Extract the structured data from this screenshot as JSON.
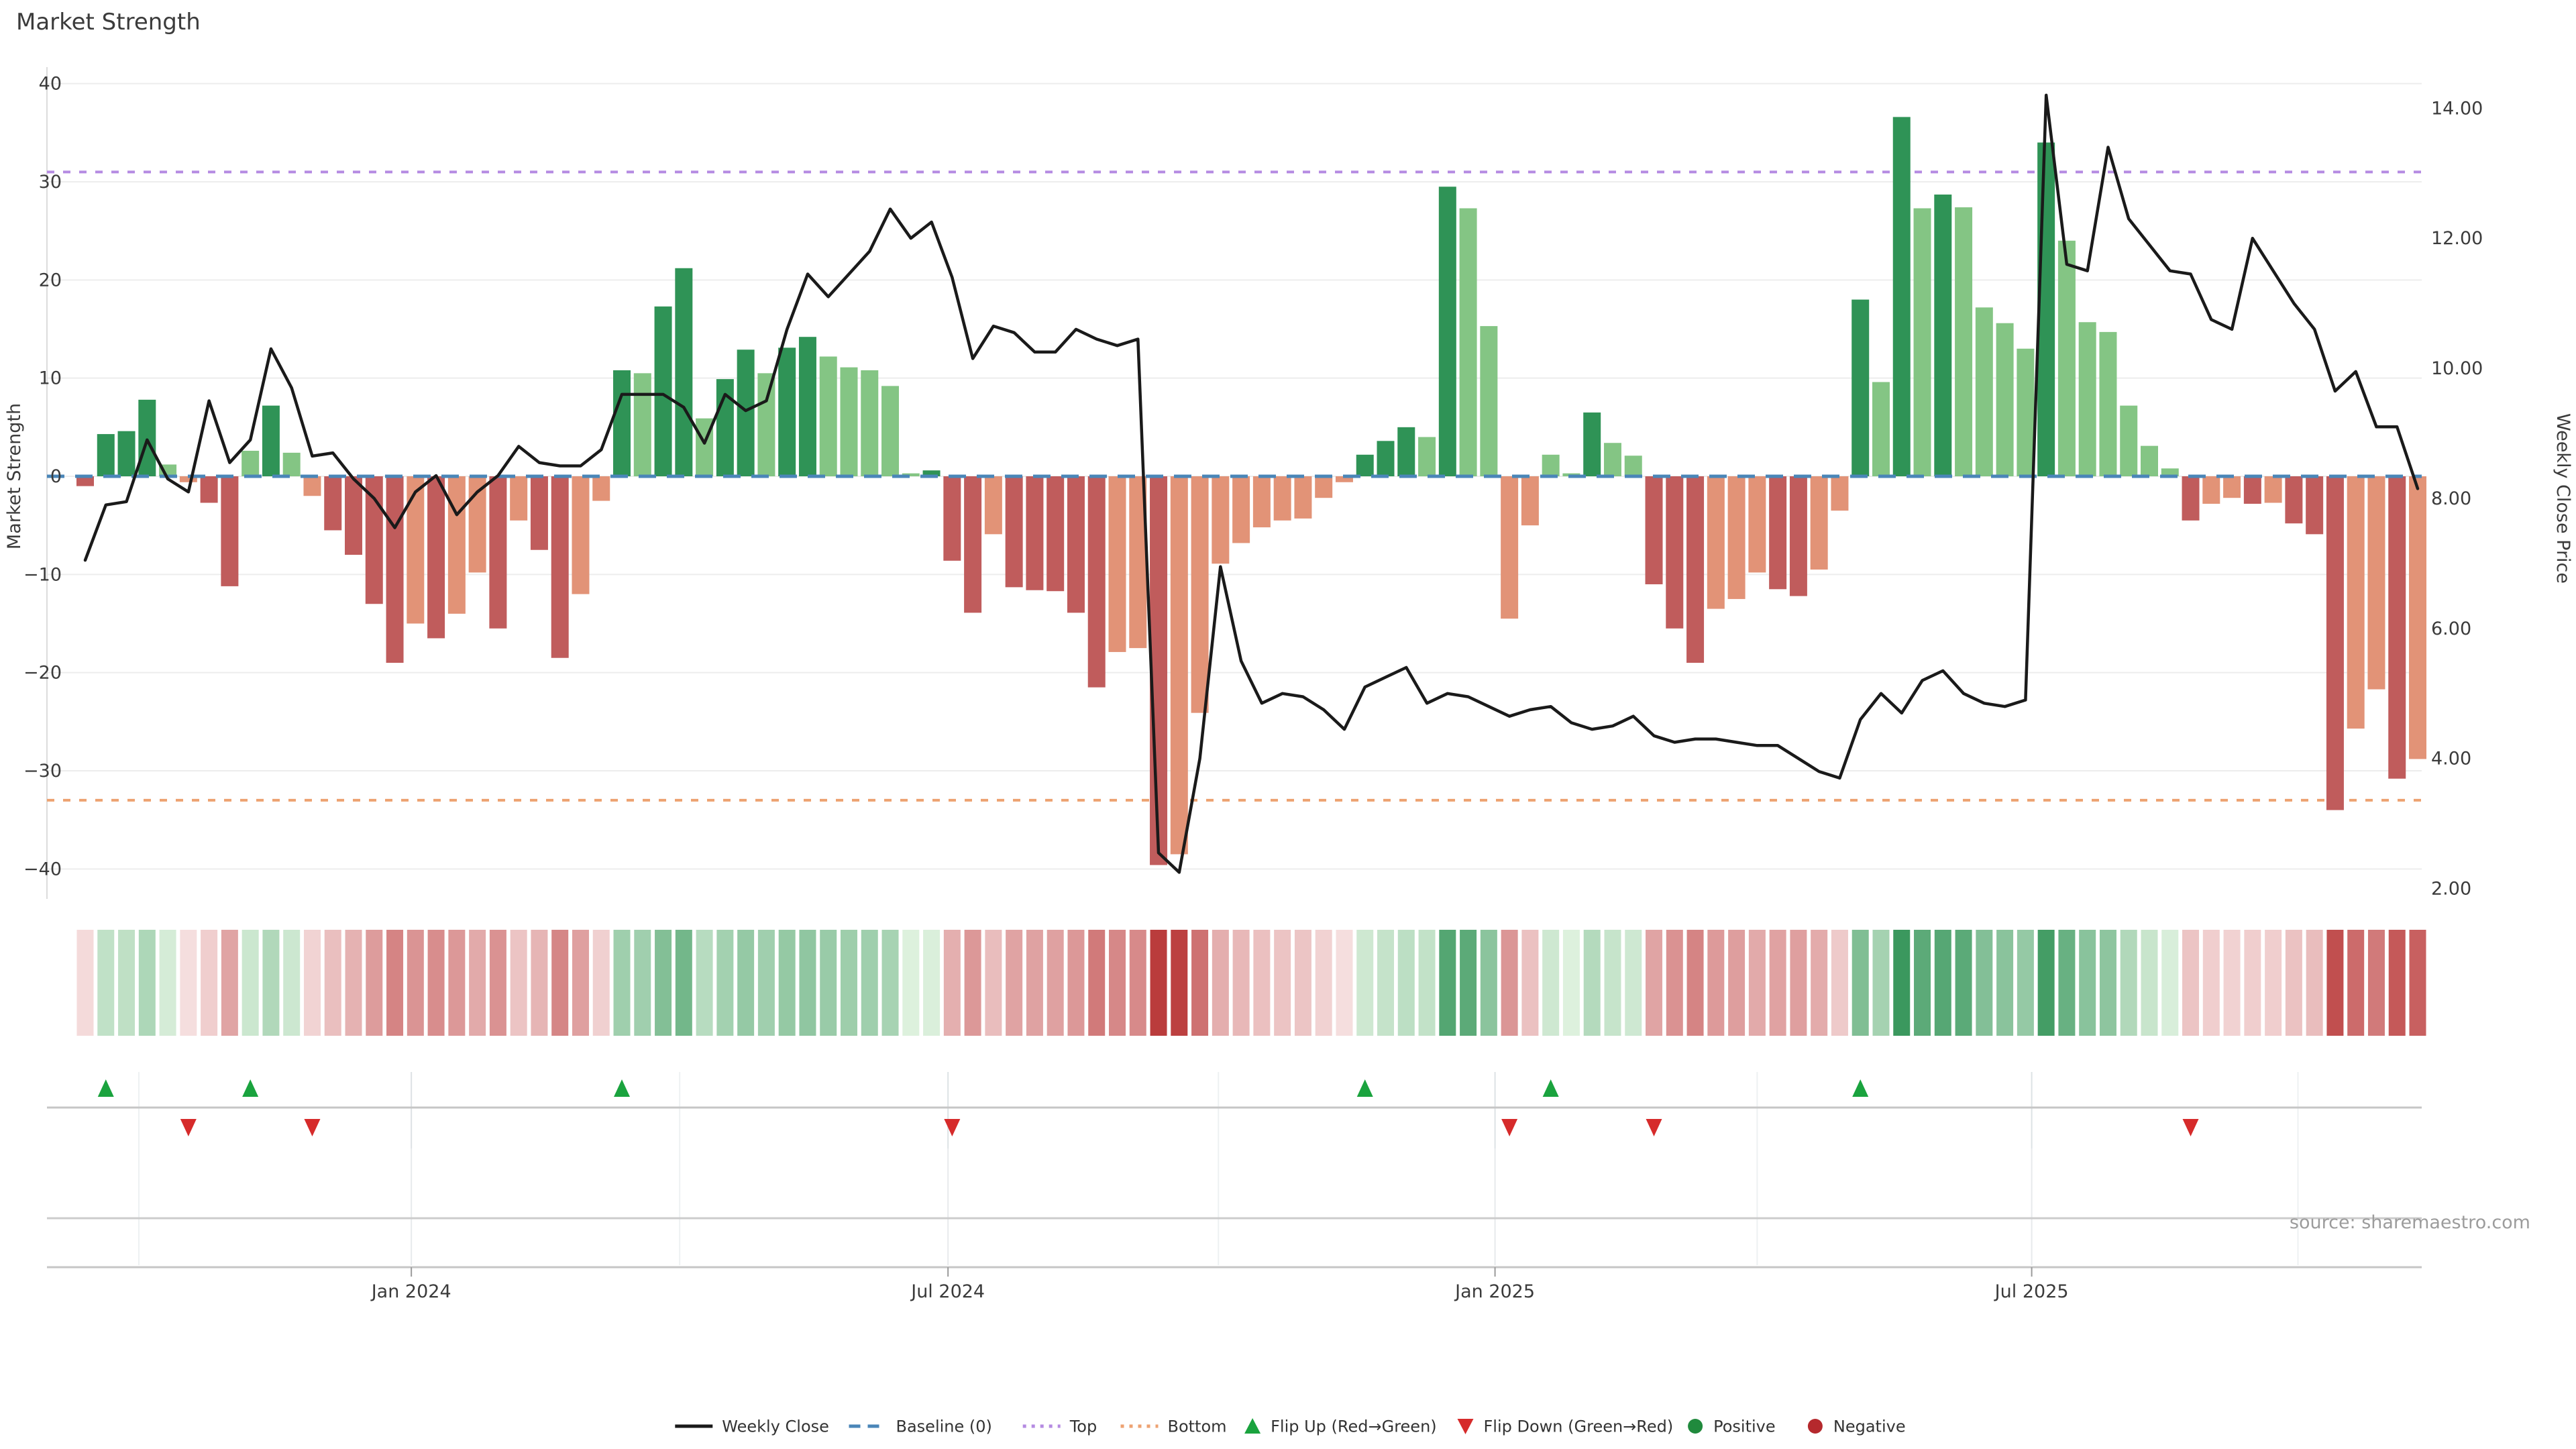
{
  "title": "Market Strength",
  "source_note": "source: sharemaestro.com",
  "axes": {
    "left": {
      "label": "Market Strength",
      "tick_values": [
        40,
        30,
        20,
        10,
        0,
        -10,
        -20,
        -30,
        -40
      ]
    },
    "right": {
      "label": "Weekly Close Price",
      "tick_labels": [
        "14.00",
        "12.00",
        "10.00",
        "8.00",
        "6.00",
        "4.00",
        "2.00"
      ],
      "tick_values": [
        14,
        12,
        10,
        8,
        6,
        4,
        2
      ]
    },
    "x": {
      "tick_labels": [
        "Jan 2024",
        "Jul 2024",
        "Jan 2025",
        "Jul 2025"
      ],
      "tick_weeks": [
        16.8,
        42.8,
        69.3,
        95.3
      ],
      "minor_tick_weeks": [
        3.6,
        29.8,
        55.9,
        82.0,
        108.2
      ]
    }
  },
  "legend": [
    {
      "label": "Weekly Close",
      "marker": "line",
      "color": "#1a1a1a"
    },
    {
      "label": "Baseline (0)",
      "marker": "dashed-line",
      "color": "#4a86b8"
    },
    {
      "label": "Top",
      "marker": "dotted-line",
      "color": "#b58be2"
    },
    {
      "label": "Bottom",
      "marker": "dotted-line",
      "color": "#eda271"
    },
    {
      "label": "Flip Up (Red→Green)",
      "marker": "triangle-up",
      "color": "#1aa33e"
    },
    {
      "label": "Flip Down (Green→Red)",
      "marker": "triangle-down",
      "color": "#d62b2b"
    },
    {
      "label": "Positive",
      "marker": "circle",
      "color": "#208a3d"
    },
    {
      "label": "Negative",
      "marker": "circle",
      "color": "#b5292d"
    }
  ],
  "colors": {
    "bar_positive_strong": "#2f9356",
    "bar_positive_soft": "#84c584",
    "bar_negative_strong": "#c05c5c",
    "bar_negative_soft": "#e29377",
    "weekly_close_line": "#1a1a1a",
    "baseline_dash": "#4a86b8",
    "top_dash": "#b58be2",
    "bottom_dash": "#eda271",
    "flip_up_marker": "#1aa33e",
    "flip_down_marker": "#d62b2b",
    "heat_green_max": "#2f9255",
    "heat_red_max": "#ba3b3b",
    "grid": "#ededed",
    "panel_line": "#c6c6c6",
    "tick_text": "#3b3b3b",
    "source_text": "#9c9c9c"
  },
  "chart_data": {
    "type": "bar+line",
    "weeks": 114,
    "title": "Market Strength",
    "ylabel_left": "Market Strength",
    "ylabel_right": "Weekly Close Price",
    "ylim_left": [
      -42,
      42
    ],
    "ylim_right": [
      1.9,
      14.3
    ],
    "grid": "horizontal",
    "legend_position": "bottom-center",
    "reference_lines": {
      "baseline": 0,
      "top": 31,
      "bottom": -33
    },
    "flip_up_weeks": [
      2,
      9,
      27,
      63,
      72,
      87
    ],
    "flip_down_weeks": [
      6,
      12,
      43,
      70,
      77,
      103
    ],
    "series": [
      {
        "name": "Market Strength",
        "type": "bar",
        "axis": "left",
        "values": [
          -1.0,
          4.3,
          4.6,
          7.8,
          1.2,
          -0.6,
          -2.7,
          -11.2,
          2.6,
          7.2,
          2.4,
          -2.0,
          -5.5,
          -8.0,
          -13.0,
          -19.0,
          -15.0,
          -16.5,
          -14.0,
          -9.8,
          -15.5,
          -4.5,
          -7.5,
          -18.5,
          -12.0,
          -2.5,
          10.8,
          10.5,
          17.3,
          21.2,
          5.9,
          9.9,
          12.9,
          10.5,
          13.1,
          14.2,
          12.2,
          11.1,
          10.8,
          9.2,
          0.3,
          0.6,
          -8.6,
          -13.9,
          -5.9,
          -11.3,
          -11.6,
          -11.7,
          -13.9,
          -21.5,
          -17.9,
          -17.5,
          -39.6,
          -38.5,
          -24.1,
          -8.9,
          -6.8,
          -5.2,
          -4.5,
          -4.3,
          -2.2,
          -0.6,
          2.2,
          3.6,
          5.0,
          4.0,
          29.5,
          27.3,
          15.3,
          -14.5,
          -5.0,
          2.2,
          0.3,
          6.5,
          3.4,
          2.1,
          -11.0,
          -15.5,
          -19.0,
          -13.5,
          -12.5,
          -9.8,
          -11.5,
          -12.2,
          -9.5,
          -3.5,
          18.0,
          9.6,
          36.6,
          27.3,
          28.7,
          27.4,
          17.2,
          15.6,
          13.0,
          34.0,
          24.0,
          15.7,
          14.7,
          7.2,
          3.1,
          0.8,
          -4.5,
          -2.8,
          -2.2,
          -2.8,
          -2.7,
          -4.8,
          -5.9,
          -34.0,
          -25.7,
          -21.7,
          -30.8,
          -28.8
        ]
      },
      {
        "name": "Weekly Close",
        "type": "line",
        "axis": "right",
        "values": [
          7.05,
          7.9,
          7.95,
          8.9,
          8.3,
          8.1,
          9.5,
          8.55,
          8.9,
          10.3,
          9.7,
          8.65,
          8.7,
          8.3,
          8.0,
          7.55,
          8.1,
          8.35,
          7.75,
          8.1,
          8.35,
          8.8,
          8.55,
          8.5,
          8.5,
          8.75,
          9.6,
          9.6,
          9.6,
          9.4,
          8.85,
          9.6,
          9.35,
          9.5,
          10.6,
          11.45,
          11.1,
          11.45,
          11.8,
          12.45,
          12.0,
          12.25,
          11.4,
          10.15,
          10.65,
          10.55,
          10.25,
          10.25,
          10.6,
          10.45,
          10.35,
          10.45,
          2.55,
          2.25,
          4.0,
          6.95,
          5.5,
          4.85,
          5.0,
          4.95,
          4.75,
          4.45,
          5.1,
          5.25,
          5.4,
          4.85,
          5.0,
          4.95,
          4.8,
          4.65,
          4.75,
          4.8,
          4.55,
          4.45,
          4.5,
          4.65,
          4.35,
          4.25,
          4.3,
          4.3,
          4.25,
          4.2,
          4.2,
          4.0,
          3.8,
          3.7,
          4.6,
          5.0,
          4.7,
          5.2,
          5.35,
          5.0,
          4.85,
          4.8,
          4.9,
          14.2,
          11.6,
          11.5,
          13.4,
          12.3,
          11.9,
          11.5,
          11.45,
          10.75,
          10.6,
          12.0,
          11.5,
          11.0,
          10.6,
          9.65,
          9.95,
          9.1,
          9.1,
          8.15
        ]
      }
    ]
  }
}
